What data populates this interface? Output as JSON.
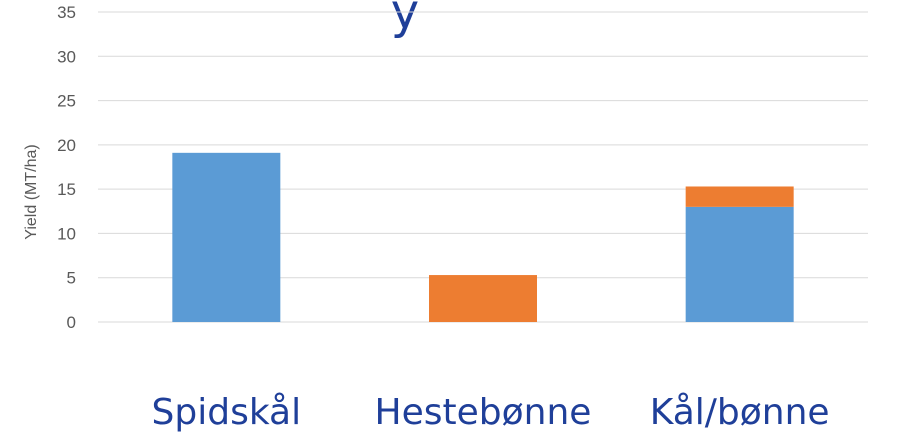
{
  "chart_data": {
    "type": "bar",
    "stacked": true,
    "title": "y",
    "xlabel": "",
    "ylabel": "Yield (MT/ha)",
    "ylim": [
      0,
      35
    ],
    "yticks": [
      0,
      5,
      10,
      15,
      20,
      25,
      30,
      35
    ],
    "grid": true,
    "legend": "none",
    "categories": [
      "Spidskål",
      "Hestebønne",
      "Kål/bønne"
    ],
    "series": [
      {
        "color": "#5b9bd5",
        "values": [
          19.1,
          0,
          13.0
        ]
      },
      {
        "color": "#ed7d31",
        "values": [
          0,
          5.3,
          2.3
        ]
      }
    ]
  }
}
